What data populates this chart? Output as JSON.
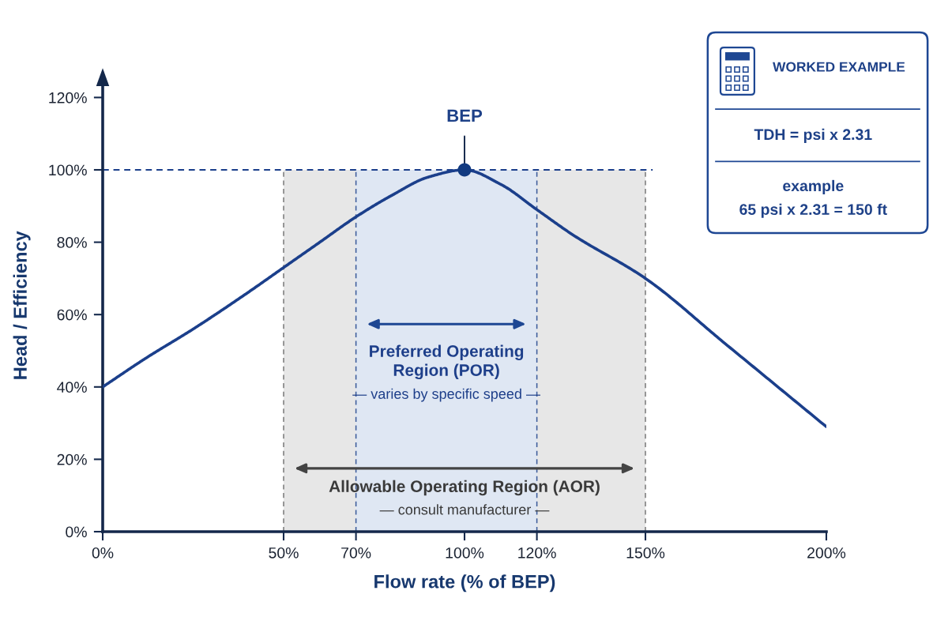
{
  "chart_data": [
    {
      "type": "line",
      "xlabel": "Flow rate (% of BEP)",
      "ylabel": "Head / Efficiency",
      "x": [
        0,
        12,
        25,
        40,
        50,
        60,
        70,
        80,
        90,
        100,
        110,
        120,
        130,
        150,
        172,
        200
      ],
      "series": [
        {
          "type": "line",
          "color": "#1b3f8b",
          "values": [
            40,
            48,
            56,
            66,
            73,
            80,
            87,
            93,
            98,
            100,
            96,
            89,
            82,
            70,
            52,
            29
          ]
        },
        {
          "type": "scatter",
          "x": [
            100
          ],
          "values": [
            100
          ],
          "color": "#123a80",
          "marker": "circle"
        }
      ],
      "xlim": [
        0,
        200
      ],
      "ylim": [
        0,
        125
      ],
      "xticks": [
        {
          "value": 0,
          "label": "0%"
        },
        {
          "value": 50,
          "label": "50%"
        },
        {
          "value": 70,
          "label": "70%"
        },
        {
          "value": 100,
          "label": "100%"
        },
        {
          "value": 120,
          "label": "120%"
        },
        {
          "value": 150,
          "label": "150%"
        },
        {
          "value": 200,
          "label": "200%"
        }
      ],
      "yticks": [
        {
          "value": 0,
          "label": "0%"
        },
        {
          "value": 20,
          "label": "20%"
        },
        {
          "value": 40,
          "label": "40%"
        },
        {
          "value": 60,
          "label": "60%"
        },
        {
          "value": 80,
          "label": "80%"
        },
        {
          "value": 100,
          "label": "100%"
        },
        {
          "value": 120,
          "label": "120%"
        }
      ],
      "ref_lines": [
        {
          "axis": "y",
          "value": 100,
          "color": "#1b3f8b",
          "line_style": "dashed"
        },
        {
          "axis": "x",
          "value": 50,
          "color": "#7a7a7a",
          "line_style": "dashed"
        },
        {
          "axis": "x",
          "value": 70,
          "color": "#3b5a9a",
          "line_style": "dashed"
        },
        {
          "axis": "x",
          "value": 120,
          "color": "#3b5a9a",
          "line_style": "dashed"
        },
        {
          "axis": "x",
          "value": 150,
          "color": "#7a7a7a",
          "line_style": "dashed"
        }
      ],
      "bands": [
        {
          "axis": "x",
          "from": 50,
          "to": 150,
          "label": "Allowable Operating Region (AOR)",
          "color": "#e7e7e7"
        },
        {
          "axis": "x",
          "from": 70,
          "to": 120,
          "label": "Preferred Operating\nRegion (POR)",
          "color": "#dfe7f3"
        }
      ],
      "annotations": [
        {
          "text": "BEP",
          "x": 100,
          "y": 100
        },
        "— consult manufacturer —",
        "— varies by specific speed —"
      ],
      "line_style": "solid"
    },
    {
      "type": "other",
      "title": "WORKED EXAMPLE",
      "annotations": [
        "TDH = psi x 2.31",
        "example",
        "65 psi x 2.31 = 150 ft"
      ]
    }
  ]
}
